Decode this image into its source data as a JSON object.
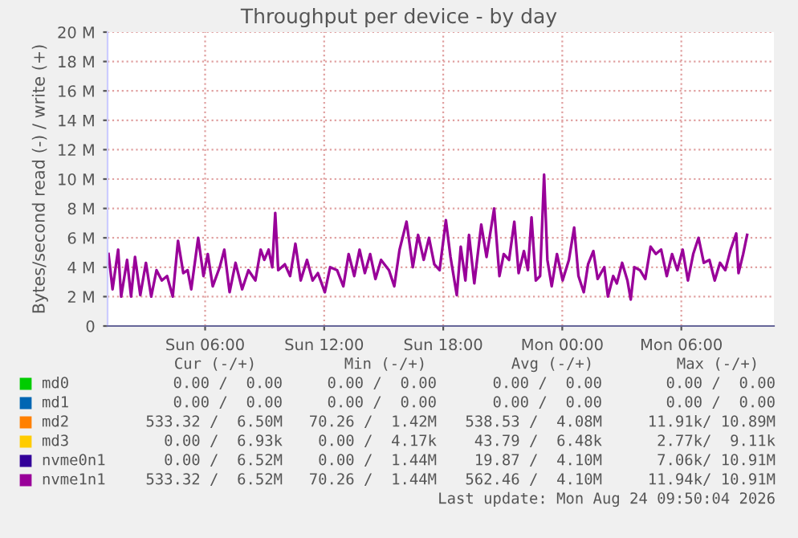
{
  "chart_data": {
    "type": "line",
    "title": "Throughput per device - by day",
    "ylabel": "Bytes/second read (-) / write (+)",
    "xlim": [
      "2026-08-23T01:05",
      "2026-08-24T10:40"
    ],
    "xticks": [
      {
        "value": "2026-08-23T06:00",
        "label": "Sun 06:00"
      },
      {
        "value": "2026-08-23T12:00",
        "label": "Sun 12:00"
      },
      {
        "value": "2026-08-23T18:00",
        "label": "Sun 18:00"
      },
      {
        "value": "2026-08-24T00:00",
        "label": "Mon 00:00"
      },
      {
        "value": "2026-08-24T06:00",
        "label": "Mon 06:00"
      }
    ],
    "ylim": [
      0,
      20000000
    ],
    "yticks": [
      0,
      {
        "value": 2000000,
        "label": "2 M"
      },
      {
        "value": 4000000,
        "label": "4 M"
      },
      {
        "value": 6000000,
        "label": "6 M"
      },
      {
        "value": 8000000,
        "label": "8 M"
      },
      {
        "value": 10000000,
        "label": "10 M"
      },
      {
        "value": 12000000,
        "label": "12 M"
      },
      {
        "value": 14000000,
        "label": "14 M"
      },
      {
        "value": 16000000,
        "label": "16 M"
      },
      {
        "value": 18000000,
        "label": "18 M"
      },
      {
        "value": 20000000,
        "label": "20 M"
      }
    ],
    "grid": true,
    "legend": "bottom",
    "series": [
      {
        "name": "md0",
        "color": "#00cc00"
      },
      {
        "name": "md1",
        "color": "#0066b3"
      },
      {
        "name": "md2",
        "color": "#ff8000"
      },
      {
        "name": "md3",
        "color": "#ffcc00"
      },
      {
        "name": "nvme0n1",
        "color": "#330099"
      },
      {
        "name": "nvme1n1",
        "color": "#990099",
        "x": [
          "2026-08-23T01:08",
          "2026-08-23T01:20",
          "2026-08-23T01:37",
          "2026-08-23T01:46",
          "2026-08-23T02:04",
          "2026-08-23T02:16",
          "2026-08-23T02:28",
          "2026-08-23T02:44",
          "2026-08-23T03:01",
          "2026-08-23T03:17",
          "2026-08-23T03:33",
          "2026-08-23T03:49",
          "2026-08-23T04:05",
          "2026-08-23T04:22",
          "2026-08-23T04:38",
          "2026-08-23T04:54",
          "2026-08-23T05:07",
          "2026-08-23T05:18",
          "2026-08-23T05:39",
          "2026-08-23T05:55",
          "2026-08-23T06:08",
          "2026-08-23T06:23",
          "2026-08-23T06:44",
          "2026-08-23T06:58",
          "2026-08-23T07:14",
          "2026-08-23T07:32",
          "2026-08-23T07:52",
          "2026-08-23T08:11",
          "2026-08-23T08:32",
          "2026-08-23T08:48",
          "2026-08-23T08:59",
          "2026-08-23T09:12",
          "2026-08-23T09:23",
          "2026-08-23T09:32",
          "2026-08-23T09:41",
          "2026-08-23T10:01",
          "2026-08-23T10:17",
          "2026-08-23T10:33",
          "2026-08-23T10:49",
          "2026-08-23T11:08",
          "2026-08-23T11:25",
          "2026-08-23T11:41",
          "2026-08-23T12:02",
          "2026-08-23T12:18",
          "2026-08-23T12:39",
          "2026-08-23T12:58",
          "2026-08-23T13:14",
          "2026-08-23T13:31",
          "2026-08-23T13:47",
          "2026-08-23T14:03",
          "2026-08-23T14:19",
          "2026-08-23T14:35",
          "2026-08-23T14:52",
          "2026-08-23T15:16",
          "2026-08-23T15:32",
          "2026-08-23T15:48",
          "2026-08-23T16:09",
          "2026-08-23T16:28",
          "2026-08-23T16:44",
          "2026-08-23T17:01",
          "2026-08-23T17:17",
          "2026-08-23T17:33",
          "2026-08-23T17:49",
          "2026-08-23T18:08",
          "2026-08-23T18:22",
          "2026-08-23T18:41",
          "2026-08-23T18:53",
          "2026-08-23T19:07",
          "2026-08-23T19:18",
          "2026-08-23T19:34",
          "2026-08-23T19:55",
          "2026-08-23T20:11",
          "2026-08-23T20:34",
          "2026-08-23T20:50",
          "2026-08-23T21:03",
          "2026-08-23T21:19",
          "2026-08-23T21:35",
          "2026-08-23T21:48",
          "2026-08-23T22:04",
          "2026-08-23T22:16",
          "2026-08-23T22:27",
          "2026-08-23T22:40",
          "2026-08-23T22:53",
          "2026-08-23T23:05",
          "2026-08-23T23:15",
          "2026-08-23T23:28",
          "2026-08-23T23:44",
          "2026-08-24T00:01",
          "2026-08-24T00:20",
          "2026-08-24T00:36",
          "2026-08-24T00:49",
          "2026-08-24T01:05",
          "2026-08-24T01:18",
          "2026-08-24T01:34",
          "2026-08-24T01:47",
          "2026-08-24T02:07",
          "2026-08-24T02:18",
          "2026-08-24T02:34",
          "2026-08-24T02:45",
          "2026-08-24T03:01",
          "2026-08-24T03:17",
          "2026-08-24T03:27",
          "2026-08-24T03:38",
          "2026-08-24T03:55",
          "2026-08-24T04:11",
          "2026-08-24T04:27",
          "2026-08-24T04:43",
          "2026-08-24T04:59",
          "2026-08-24T05:16",
          "2026-08-24T05:32",
          "2026-08-24T05:48",
          "2026-08-24T06:04",
          "2026-08-24T06:20",
          "2026-08-24T06:36",
          "2026-08-24T06:52",
          "2026-08-24T07:08",
          "2026-08-24T07:25",
          "2026-08-24T07:41",
          "2026-08-24T07:57",
          "2026-08-24T08:13",
          "2026-08-24T08:29",
          "2026-08-24T08:46",
          "2026-08-24T08:53",
          "2026-08-24T09:07",
          "2026-08-24T09:19"
        ],
        "values": [
          4900000,
          2500000,
          5200000,
          2000000,
          4500000,
          2000000,
          4700000,
          2100000,
          4300000,
          2000000,
          3800000,
          3100000,
          3400000,
          2000000,
          5800000,
          3600000,
          3800000,
          2500000,
          6000000,
          3400000,
          4900000,
          2700000,
          4000000,
          5200000,
          2300000,
          4300000,
          2500000,
          3800000,
          3100000,
          5200000,
          4500000,
          5200000,
          4000000,
          7700000,
          3800000,
          4200000,
          3400000,
          5600000,
          3100000,
          4500000,
          3100000,
          3600000,
          2300000,
          4000000,
          3800000,
          2700000,
          4900000,
          3400000,
          5200000,
          3600000,
          4900000,
          3200000,
          4500000,
          3800000,
          2700000,
          5200000,
          7100000,
          4000000,
          6200000,
          4500000,
          6000000,
          4200000,
          3800000,
          7200000,
          4700000,
          2100000,
          5400000,
          3100000,
          6200000,
          2900000,
          6900000,
          4700000,
          8000000,
          3400000,
          4900000,
          4500000,
          7100000,
          3600000,
          5100000,
          3800000,
          7400000,
          3100000,
          3400000,
          10300000,
          4500000,
          2700000,
          4900000,
          3100000,
          4500000,
          6700000,
          3400000,
          2300000,
          4200000,
          5100000,
          3200000,
          4000000,
          2000000,
          3400000,
          2900000,
          4300000,
          3100000,
          1800000,
          4000000,
          3800000,
          3200000,
          5400000,
          4900000,
          5200000,
          3400000,
          4900000,
          3800000,
          5200000,
          3100000,
          4900000,
          6000000,
          4300000,
          4500000,
          3100000,
          4300000,
          3800000,
          5200000,
          6300000,
          3600000,
          4900000,
          6200000
        ]
      }
    ],
    "annotations": [
      "Cur (-/+)",
      "Min (-/+)",
      "Avg (-/+)",
      "Max (-/+)",
      "0.00 /  0.00",
      "0.00 /  0.00",
      "0.00 /  0.00",
      "0.00 /  0.00",
      "0.00 /  0.00",
      "0.00 /  0.00",
      "0.00 /  0.00",
      "0.00 /  0.00",
      "533.32 /  6.50M",
      "70.26 /  1.42M",
      "538.53 /  4.08M",
      "11.91k/ 10.89M",
      "0.00 /  6.93k",
      "0.00 /  4.17k",
      "43.79 /  6.48k",
      "2.77k/  9.11k",
      "0.00 /  6.52M",
      "0.00 /  1.44M",
      "19.87 /  4.10M",
      "7.06k/ 10.91M",
      "533.32 /  6.52M",
      "70.26 /  1.44M",
      "562.46 /  4.10M",
      "11.94k/ 10.91M",
      "Last update: Mon Aug 24 09:50:04 2026"
    ]
  }
}
